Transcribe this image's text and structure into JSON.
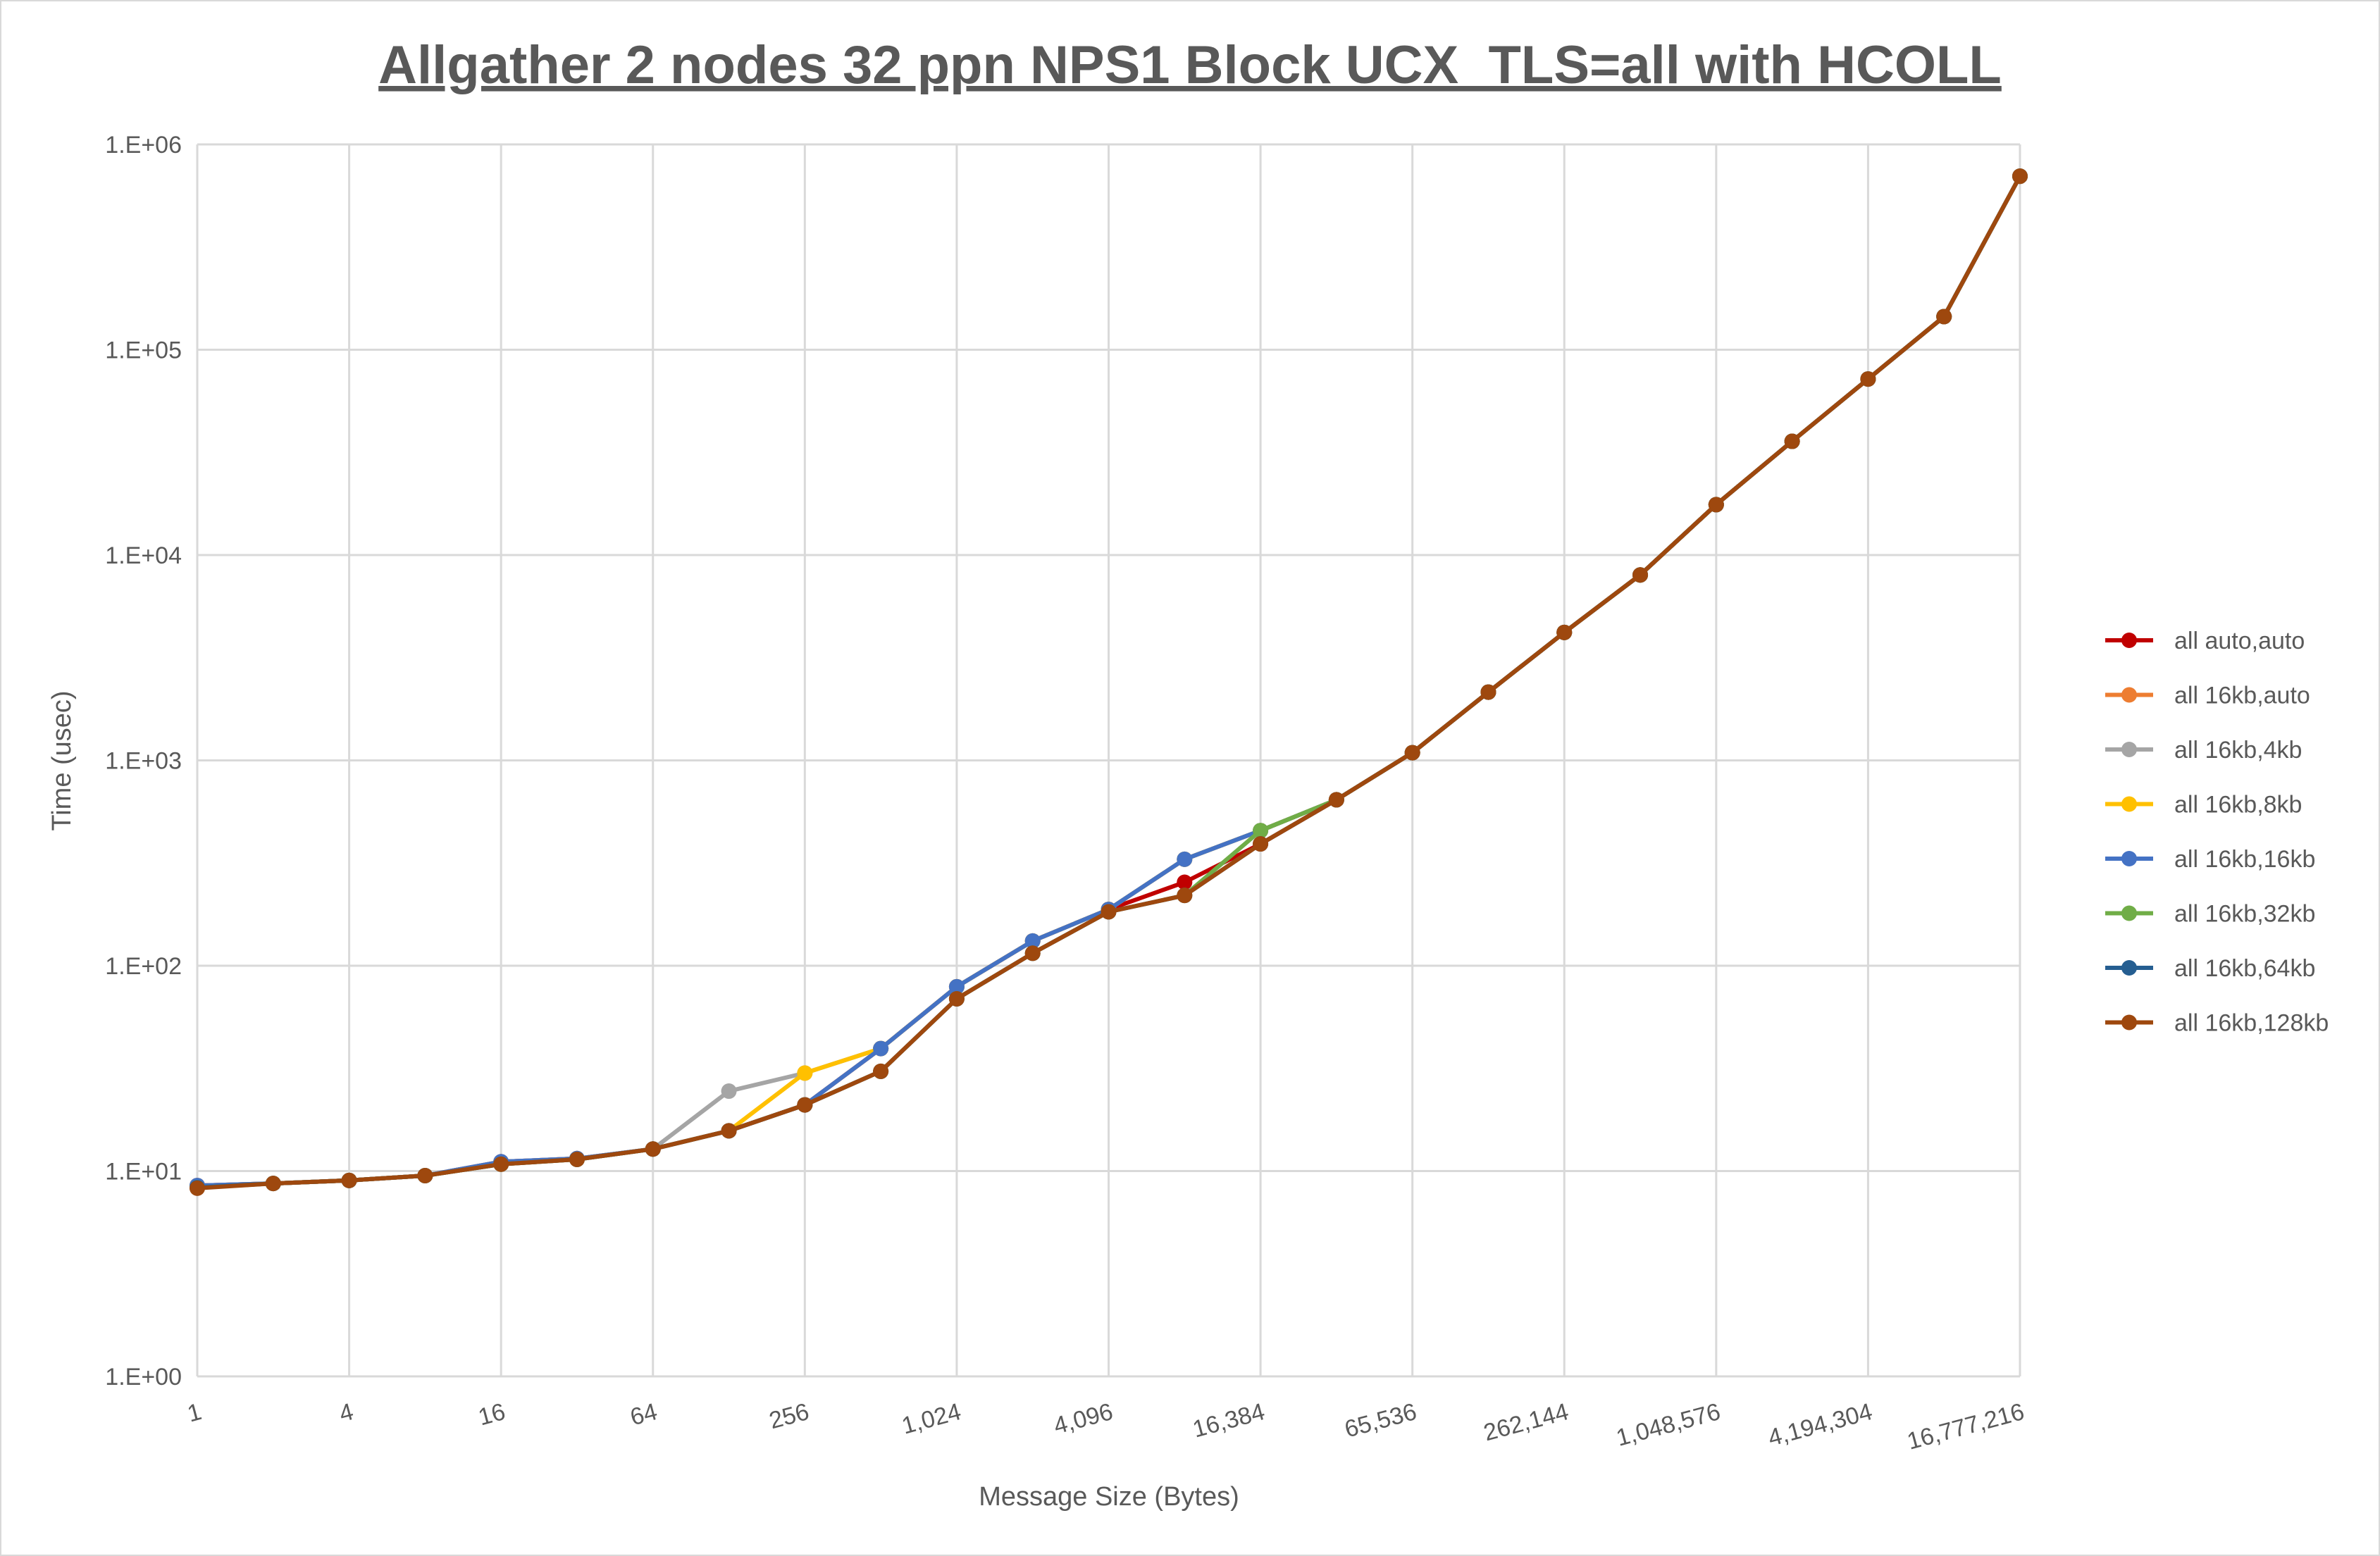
{
  "chart_data": {
    "type": "line",
    "title": "Allgather 2 nodes 32 ppn NPS1 Block UCX_TLS=all with HCOLL",
    "xlabel": "Message Size (Bytes)",
    "ylabel": "Time (usec)",
    "x_scale": "log2",
    "y_scale": "log10",
    "ylim": [
      1,
      1000000
    ],
    "grid": true,
    "legend_position": "right",
    "x": [
      1,
      2,
      4,
      8,
      16,
      32,
      64,
      128,
      256,
      512,
      1024,
      2048,
      4096,
      8192,
      16384,
      32768,
      65536,
      131072,
      262144,
      524288,
      1048576,
      2097152,
      4194304,
      8388608,
      16777216
    ],
    "x_tick_labels": [
      "1",
      "4",
      "16",
      "64",
      "256",
      "1,024",
      "4,096",
      "16,384",
      "65,536",
      "262,144",
      "1,048,576",
      "4,194,304",
      "16,777,216"
    ],
    "y_tick_labels": [
      "1.E+00",
      "1.E+01",
      "1.E+02",
      "1.E+03",
      "1.E+04",
      "1.E+05",
      "1.E+06"
    ],
    "series": [
      {
        "name": "all auto,auto",
        "color": "#c00000",
        "values": [
          8.5,
          8.7,
          9.0,
          9.5,
          11.1,
          11.5,
          12.8,
          15.7,
          21,
          39.5,
          79,
          132,
          188,
          255,
          392,
          643,
          1090,
          2150,
          4200,
          8000,
          17600,
          35800,
          72000,
          145000,
          700000
        ]
      },
      {
        "name": "all 16kb,auto",
        "color": "#ed7d31",
        "values": [
          8.5,
          8.7,
          9.0,
          9.5,
          11.1,
          11.5,
          12.8,
          15.7,
          21,
          39.5,
          79,
          132,
          188,
          330,
          455,
          643,
          1090,
          2150,
          4200,
          8000,
          17600,
          35800,
          72000,
          145000,
          700000
        ]
      },
      {
        "name": "all 16kb,4kb",
        "color": "#a5a5a5",
        "values": [
          8.5,
          8.7,
          9.0,
          9.5,
          11.1,
          11.5,
          12.8,
          24.5,
          30,
          39.5,
          79,
          132,
          188,
          330,
          455,
          643,
          1090,
          2150,
          4200,
          8000,
          17600,
          35800,
          72000,
          145000,
          700000
        ]
      },
      {
        "name": "all 16kb,8kb",
        "color": "#ffc000",
        "values": [
          8.3,
          8.7,
          9.0,
          9.5,
          10.8,
          11.4,
          12.8,
          15.7,
          30,
          39.5,
          79,
          132,
          188,
          330,
          455,
          643,
          1090,
          2150,
          4200,
          8000,
          17600,
          35800,
          72000,
          145000,
          700000
        ]
      },
      {
        "name": "all 16kb,16kb",
        "color": "#4472c4",
        "values": [
          8.5,
          8.7,
          9.0,
          9.5,
          11.1,
          11.5,
          12.8,
          15.7,
          21,
          39.5,
          79,
          132,
          188,
          330,
          455,
          643,
          1090,
          2150,
          4200,
          8000,
          17600,
          35800,
          72000,
          145000,
          700000
        ]
      },
      {
        "name": "all 16kb,32kb",
        "color": "#70ad47",
        "values": [
          8.3,
          8.7,
          9.0,
          9.5,
          10.8,
          11.4,
          12.8,
          15.7,
          21,
          30.6,
          69,
          115,
          183,
          220,
          455,
          643,
          1090,
          2150,
          4200,
          8000,
          17600,
          35800,
          72000,
          145000,
          700000
        ]
      },
      {
        "name": "all 16kb,64kb",
        "color": "#255e91",
        "values": [
          8.3,
          8.7,
          9.0,
          9.5,
          10.8,
          11.4,
          12.8,
          15.7,
          21,
          30.6,
          69,
          115,
          183,
          220,
          392,
          643,
          1090,
          2150,
          4200,
          8000,
          17600,
          35800,
          72000,
          145000,
          700000
        ]
      },
      {
        "name": "all 16kb,128kb",
        "color": "#9e480e",
        "values": [
          8.25,
          8.7,
          9.0,
          9.5,
          10.8,
          11.4,
          12.8,
          15.7,
          21,
          30.6,
          69,
          115,
          183,
          220,
          392,
          643,
          1090,
          2150,
          4200,
          8000,
          17600,
          35800,
          72000,
          145000,
          700000
        ]
      }
    ]
  }
}
